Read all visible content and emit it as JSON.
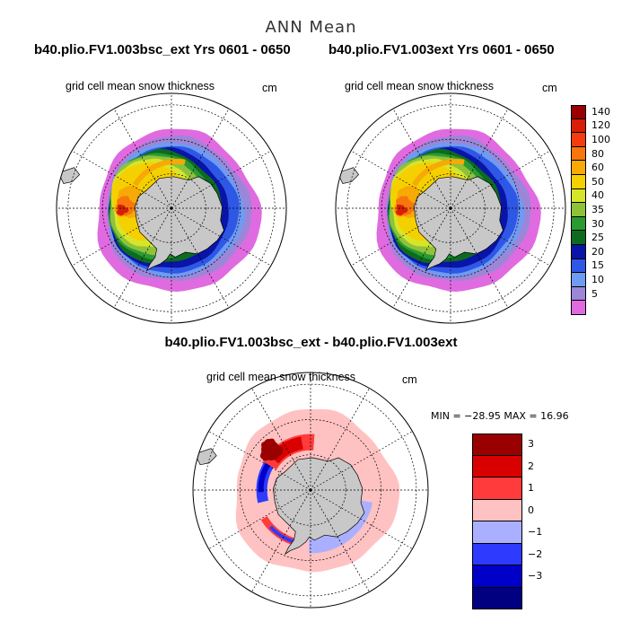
{
  "figure": {
    "title": "ANN Mean",
    "variable": "grid cell mean snow thickness",
    "units": "cm"
  },
  "panels": [
    {
      "id": "left",
      "run_title": "b40.plio.FV1.003bsc_ext  Yrs 0601 - 0650",
      "variant": 0
    },
    {
      "id": "right",
      "run_title": "b40.plio.FV1.003ext  Yrs 0601 - 0650",
      "variant": 1
    }
  ],
  "difference": {
    "title": "b40.plio.FV1.003bsc_ext - b40.plio.FV1.003ext",
    "min_label": "MIN = −28.95  MAX =   16.96"
  },
  "colorbar_top": {
    "levels": [
      {
        "label": "140",
        "color": "#9b0000"
      },
      {
        "label": "120",
        "color": "#d81e05"
      },
      {
        "label": "100",
        "color": "#f53c0e"
      },
      {
        "label": "80",
        "color": "#f7760d"
      },
      {
        "label": "60",
        "color": "#f7a906"
      },
      {
        "label": "50",
        "color": "#f5d000"
      },
      {
        "label": "40",
        "color": "#d6e52a"
      },
      {
        "label": "35",
        "color": "#8fc23a"
      },
      {
        "label": "30",
        "color": "#2a9b31"
      },
      {
        "label": "25",
        "color": "#0d6b1f"
      },
      {
        "label": "20",
        "color": "#0a14a8"
      },
      {
        "label": "15",
        "color": "#2f57e6"
      },
      {
        "label": "10",
        "color": "#6f9bf2"
      },
      {
        "label": "5",
        "color": "#9c86d8"
      },
      {
        "label": "",
        "color": "#e06be0"
      }
    ]
  },
  "colorbar_diff": {
    "levels": [
      {
        "label": "3",
        "color": "#9b0000"
      },
      {
        "label": "2",
        "color": "#d90000"
      },
      {
        "label": "1",
        "color": "#ff3b3b"
      },
      {
        "label": "0",
        "color": "#ffc2c2"
      },
      {
        "label": "−1",
        "color": "#aab0ff"
      },
      {
        "label": "−2",
        "color": "#2e3bff"
      },
      {
        "label": "−3",
        "color": "#0000c8"
      },
      {
        "label": "",
        "color": "#000080"
      }
    ]
  },
  "map_colors": {
    "land": "#c8c8c8",
    "coast": "#000000",
    "grid": "#000000",
    "ring": "#000000"
  }
}
